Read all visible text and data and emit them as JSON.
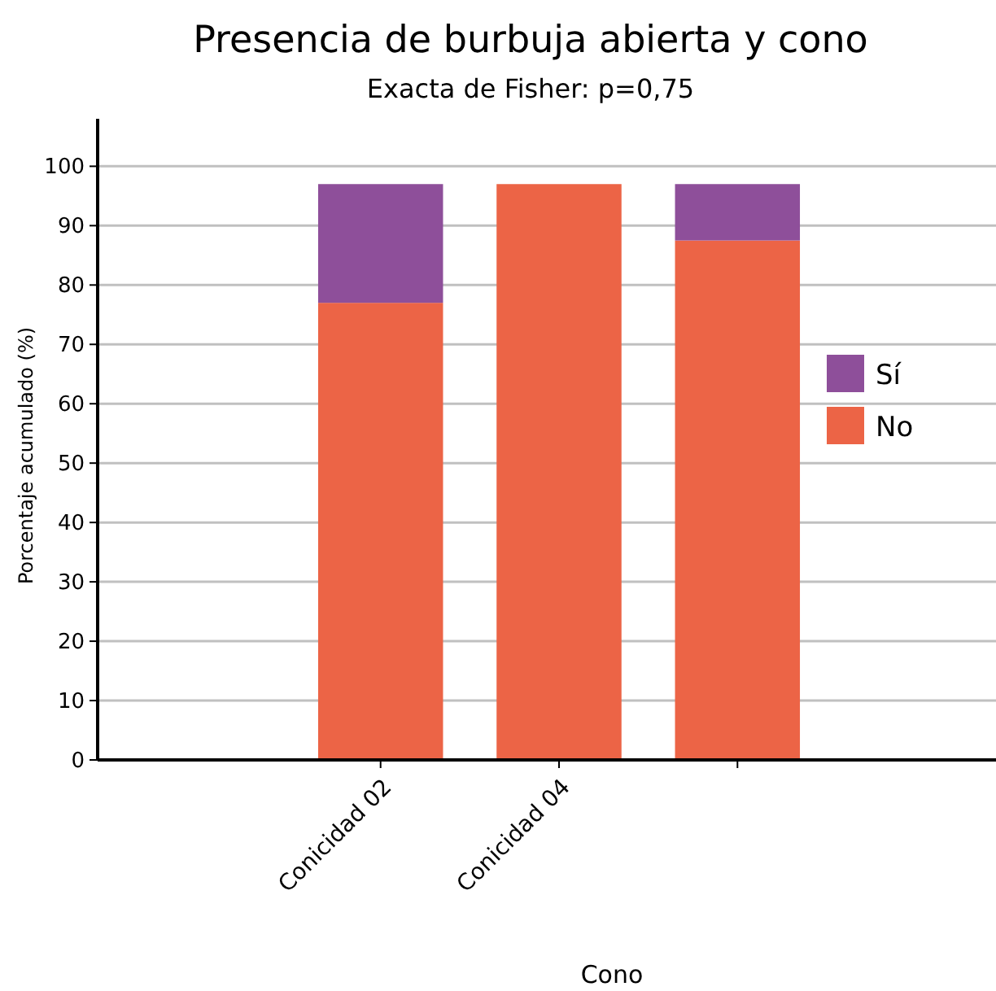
{
  "chart_data": {
    "type": "bar",
    "title": "Presencia de burbuja abierta y cono",
    "subtitle": "Exacta de Fisher: p=0,75",
    "xlabel": "Cono",
    "ylabel": "Porcentaje acumulado (%)",
    "categories": [
      "Conicidad 02",
      "Conicidad 04",
      null
    ],
    "series": [
      {
        "name": "No",
        "color": "#ec6446",
        "values": [
          77,
          97,
          87.5
        ]
      },
      {
        "name": "Sí",
        "color": "#8e4f9a",
        "values": [
          20,
          0,
          9.5
        ]
      }
    ],
    "stacked": true,
    "ylim": [
      0,
      108
    ],
    "yticks": [
      0,
      10,
      20,
      30,
      40,
      50,
      60,
      70,
      80,
      90,
      100
    ],
    "grid": "y",
    "legend": "right"
  }
}
